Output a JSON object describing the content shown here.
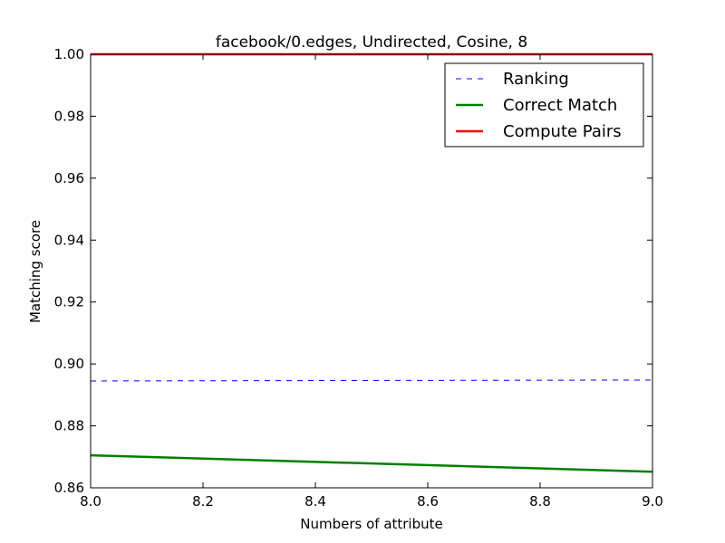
{
  "chart_data": {
    "type": "line",
    "title": "facebook/0.edges, Undirected, Cosine, 8",
    "xlabel": "Numbers of attribute",
    "ylabel": "Matching score",
    "xlim": [
      8.0,
      9.0
    ],
    "ylim": [
      0.86,
      1.0
    ],
    "xticks": [
      "8.0",
      "8.2",
      "8.4",
      "8.6",
      "8.8",
      "9.0"
    ],
    "yticks": [
      "0.86",
      "0.88",
      "0.90",
      "0.92",
      "0.94",
      "0.96",
      "0.98",
      "1.00"
    ],
    "x": [
      8.0,
      9.0
    ],
    "series": [
      {
        "name": "Ranking",
        "values": [
          0.8945,
          0.8948
        ],
        "color": "#0000ff",
        "style": "dashed"
      },
      {
        "name": "Correct Match",
        "values": [
          0.8705,
          0.8652
        ],
        "color": "#008000",
        "style": "solid"
      },
      {
        "name": "Compute Pairs",
        "values": [
          1.0,
          1.0
        ],
        "color": "#ff0000",
        "style": "solid"
      }
    ],
    "grid": false,
    "legend_position": "top-right"
  }
}
